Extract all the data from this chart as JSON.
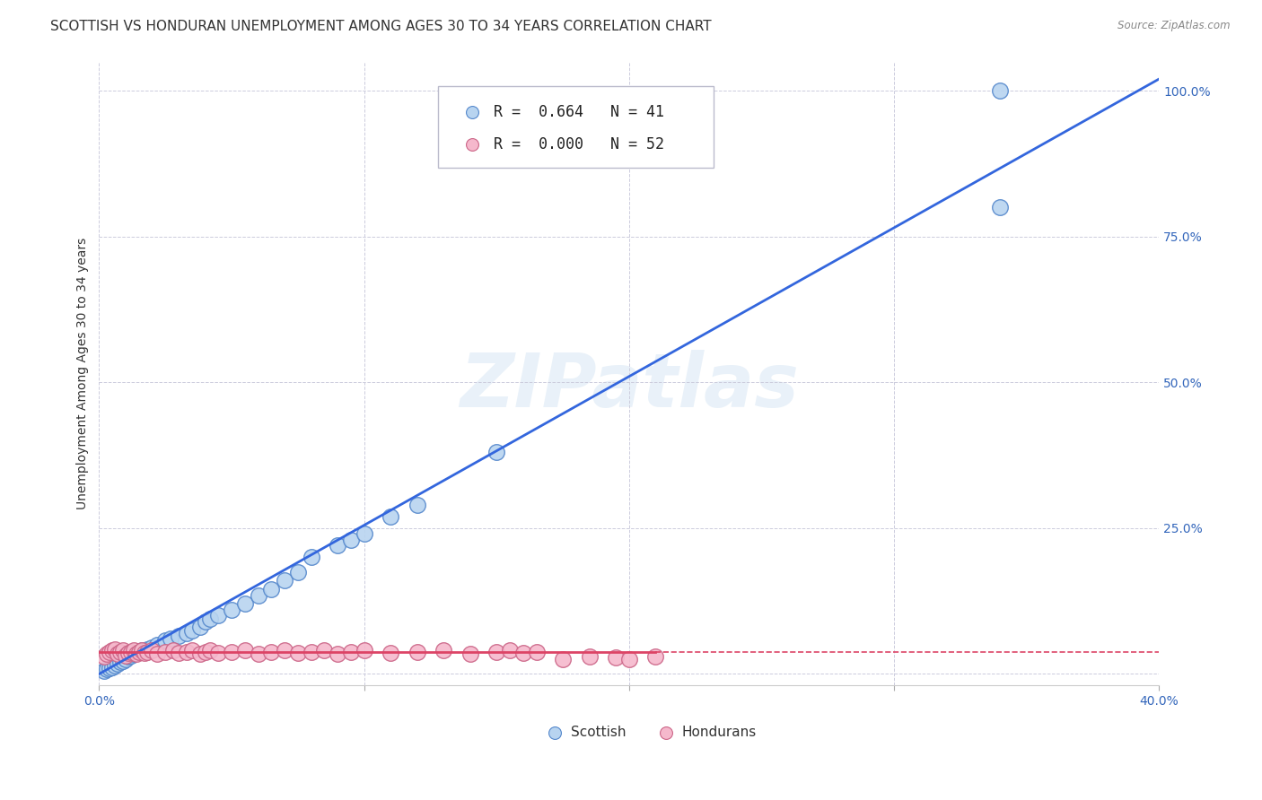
{
  "title": "SCOTTISH VS HONDURAN UNEMPLOYMENT AMONG AGES 30 TO 34 YEARS CORRELATION CHART",
  "source": "Source: ZipAtlas.com",
  "ylabel": "Unemployment Among Ages 30 to 34 years",
  "xlim": [
    0.0,
    0.4
  ],
  "ylim": [
    -0.02,
    1.05
  ],
  "xticks": [
    0.0,
    0.1,
    0.2,
    0.3,
    0.4
  ],
  "xtick_labels": [
    "0.0%",
    "",
    "",
    "",
    "40.0%"
  ],
  "yticks": [
    0.0,
    0.25,
    0.5,
    0.75,
    1.0
  ],
  "ytick_labels": [
    "",
    "25.0%",
    "50.0%",
    "75.0%",
    "100.0%"
  ],
  "scottish_R": 0.664,
  "scottish_N": 41,
  "honduran_R": 0.0,
  "honduran_N": 52,
  "scottish_color": "#b8d4f0",
  "scottish_edge_color": "#5588cc",
  "honduran_color": "#f5b8cc",
  "honduran_edge_color": "#cc6688",
  "trend_scottish_color": "#3366dd",
  "trend_honduran_color": "#dd4466",
  "watermark": "ZIPatlas",
  "scottish_x": [
    0.002,
    0.003,
    0.004,
    0.005,
    0.006,
    0.007,
    0.008,
    0.009,
    0.01,
    0.011,
    0.012,
    0.013,
    0.015,
    0.016,
    0.018,
    0.02,
    0.022,
    0.025,
    0.027,
    0.03,
    0.033,
    0.035,
    0.038,
    0.04,
    0.042,
    0.045,
    0.05,
    0.055,
    0.06,
    0.065,
    0.07,
    0.075,
    0.08,
    0.09,
    0.095,
    0.1,
    0.11,
    0.12,
    0.15,
    0.34,
    0.34
  ],
  "scottish_y": [
    0.005,
    0.008,
    0.01,
    0.012,
    0.015,
    0.018,
    0.02,
    0.022,
    0.025,
    0.03,
    0.032,
    0.035,
    0.038,
    0.04,
    0.042,
    0.045,
    0.05,
    0.058,
    0.06,
    0.065,
    0.07,
    0.075,
    0.08,
    0.09,
    0.095,
    0.1,
    0.11,
    0.12,
    0.135,
    0.145,
    0.16,
    0.175,
    0.2,
    0.22,
    0.23,
    0.24,
    0.27,
    0.29,
    0.38,
    0.8,
    1.0
  ],
  "honduran_x": [
    0.002,
    0.003,
    0.004,
    0.005,
    0.006,
    0.007,
    0.008,
    0.009,
    0.01,
    0.011,
    0.012,
    0.013,
    0.014,
    0.015,
    0.016,
    0.017,
    0.018,
    0.02,
    0.022,
    0.025,
    0.028,
    0.03,
    0.033,
    0.035,
    0.038,
    0.04,
    0.042,
    0.045,
    0.05,
    0.055,
    0.06,
    0.065,
    0.07,
    0.075,
    0.08,
    0.085,
    0.09,
    0.095,
    0.1,
    0.11,
    0.12,
    0.13,
    0.14,
    0.15,
    0.155,
    0.16,
    0.165,
    0.175,
    0.185,
    0.195,
    0.2,
    0.21
  ],
  "honduran_y": [
    0.03,
    0.035,
    0.038,
    0.04,
    0.042,
    0.035,
    0.038,
    0.04,
    0.032,
    0.036,
    0.038,
    0.04,
    0.035,
    0.037,
    0.04,
    0.036,
    0.038,
    0.04,
    0.035,
    0.038,
    0.04,
    0.036,
    0.038,
    0.04,
    0.035,
    0.038,
    0.04,
    0.036,
    0.038,
    0.04,
    0.035,
    0.038,
    0.04,
    0.036,
    0.038,
    0.04,
    0.035,
    0.038,
    0.04,
    0.036,
    0.038,
    0.04,
    0.035,
    0.038,
    0.04,
    0.036,
    0.038,
    0.025,
    0.03,
    0.028,
    0.025,
    0.03
  ],
  "bg_color": "#ffffff",
  "grid_color": "#ccccdd",
  "title_fontsize": 11,
  "label_fontsize": 10,
  "tick_fontsize": 10,
  "legend_fontsize": 12
}
